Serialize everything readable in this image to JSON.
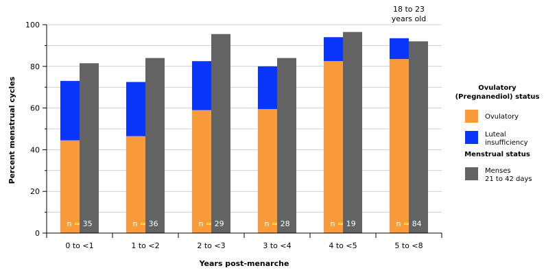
{
  "chart_data": {
    "type": "bar",
    "ylabel": "Percent menstrual cycles",
    "xlabel": "Years post-menarche",
    "ylim": [
      0,
      100
    ],
    "yticks": [
      0,
      20,
      40,
      60,
      80,
      100
    ],
    "grid": true,
    "categories": [
      "0 to <1",
      "1 to <2",
      "2 to <3",
      "3 to <4",
      "4 to <5",
      "5 to <8"
    ],
    "n_labels": [
      "n = 35",
      "n = 36",
      "n = 29",
      "n = 28",
      "n = 19",
      "n = 84"
    ],
    "series": [
      {
        "name": "Ovulatory",
        "stack": "pregnanediol",
        "color": "#f99b3a",
        "values": [
          44.5,
          46.5,
          59,
          59.5,
          82.5,
          83.5
        ]
      },
      {
        "name": "Luteal insufficiency",
        "stack": "pregnanediol",
        "color": "#0a35fa",
        "values": [
          28.5,
          26,
          23.5,
          20.5,
          11.5,
          10
        ]
      },
      {
        "name": "Menses 21 to 42 days",
        "stack": "menstrual",
        "color": "#636363",
        "values": [
          81.5,
          84,
          95.5,
          84,
          96.5,
          92
        ]
      }
    ],
    "annotation": {
      "category": "5 to <8",
      "lines": [
        "18 to 23",
        "years old"
      ]
    },
    "legend": {
      "placement": "right",
      "groups": [
        {
          "title": [
            "Ovulatory",
            "(Pregnanediol) status"
          ],
          "items": [
            {
              "series": 0,
              "lines": [
                "Ovulatory"
              ]
            },
            {
              "series": 1,
              "lines": [
                "Luteal",
                "insufficiency"
              ]
            }
          ]
        },
        {
          "title": [
            "Menstrual status"
          ],
          "items": [
            {
              "series": 2,
              "lines": [
                "Menses",
                "21 to 42 days"
              ]
            }
          ]
        }
      ]
    }
  }
}
